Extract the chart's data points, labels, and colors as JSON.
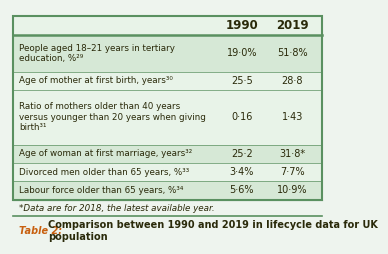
{
  "title_caption_bold": "Table 2: ",
  "title_caption_rest": "Comparison between 1990 and 2019 in lifecycle data for UK\npopulation",
  "footnote": "*Data are for 2018, the latest available year.",
  "col_headers": [
    "",
    "1990",
    "2019"
  ],
  "rows": [
    {
      "label": "People aged 18–21 years in tertiary\neducation, %²⁹",
      "val1990": "19·0%",
      "val2019": "51·8%",
      "bg": "#d6e8d6"
    },
    {
      "label": "Age of mother at first birth, years³⁰",
      "val1990": "25·5",
      "val2019": "28·8",
      "bg": "#e8f3e8"
    },
    {
      "label": "Ratio of mothers older than 40 years\nversus younger than 20 years when giving\nbirth³¹",
      "val1990": "0·16",
      "val2019": "1·43",
      "bg": "#e8f3e8"
    },
    {
      "label": "Age of woman at first marriage, years³²",
      "val1990": "25·2",
      "val2019": "31·8*",
      "bg": "#d6e8d6"
    },
    {
      "label": "Divorced men older than 65 years, %³³",
      "val1990": "3·4%",
      "val2019": "7·7%",
      "bg": "#e8f3e8"
    },
    {
      "label": "Labour force older than 65 years, %³⁴",
      "val1990": "5·6%",
      "val2019": "10·9%",
      "bg": "#d6e8d6"
    }
  ],
  "border_color": "#5a9060",
  "header_bg": "#e8f3e8",
  "text_color": "#2a2a0a",
  "orange_color": "#c86010",
  "fig_bg": "#eef4ee",
  "row_line_counts": [
    2,
    1,
    3,
    1,
    1,
    1
  ]
}
